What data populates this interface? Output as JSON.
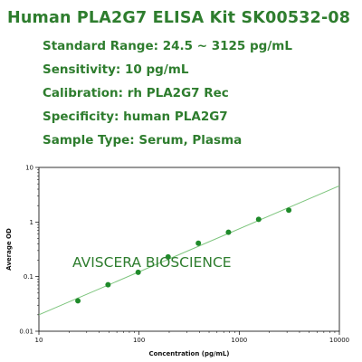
{
  "header": {
    "title": "Human PLA2G7 ELISA Kit SK00532-08",
    "specs": [
      "Standard Range: 24.5 ~ 3125 pg/mL",
      "Sensitivity: 10 pg/mL",
      "Calibration: rh PLA2G7 Rec",
      "Specificity: human PLA2G7",
      "Sample Type: Serum, Plasma"
    ]
  },
  "watermark": "AVISCERA BIOSCIENCE",
  "colors": {
    "text": "#2e7d2e",
    "line": "#7cc47c",
    "point": "#1f8a2a",
    "axis": "#000000"
  },
  "chart_data": {
    "type": "scatter",
    "xscale": "log",
    "yscale": "log",
    "xlabel": "Concentration (pg/mL)",
    "ylabel": "Average OD",
    "xlim": [
      10,
      10000
    ],
    "ylim": [
      0.01,
      10
    ],
    "xticks": [
      "10",
      "100",
      "1000",
      "10000"
    ],
    "yticks": [
      "0.01",
      "0.1",
      "1",
      "10"
    ],
    "grid": false,
    "series": [
      {
        "points": [
          {
            "x": 24.5,
            "y": 0.036
          },
          {
            "x": 49,
            "y": 0.071
          },
          {
            "x": 98,
            "y": 0.12
          },
          {
            "x": 195,
            "y": 0.23
          },
          {
            "x": 391,
            "y": 0.41
          },
          {
            "x": 781,
            "y": 0.65
          },
          {
            "x": 1563,
            "y": 1.12
          },
          {
            "x": 3125,
            "y": 1.65
          }
        ]
      }
    ],
    "fit_line": [
      {
        "x": 10,
        "y": 0.02
      },
      {
        "x": 10000,
        "y": 4.6
      }
    ]
  }
}
